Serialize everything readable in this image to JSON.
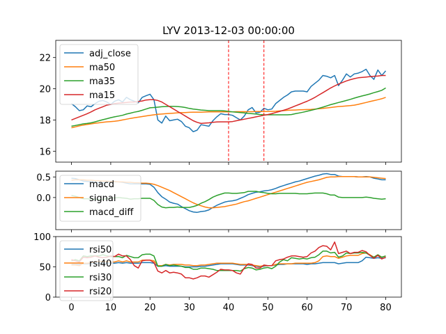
{
  "chart_data": [
    {
      "type": "line",
      "panel": "price",
      "title": "LYV 2013-12-03 00:00:00",
      "xlim": [
        -4,
        84
      ],
      "ylim": [
        15.3,
        23.1
      ],
      "yticks": [
        16,
        18,
        20,
        22
      ],
      "legend": "upper left",
      "vlines": [
        40,
        49
      ],
      "vline_color": "#ff0000",
      "series": [
        {
          "name": "adj_close",
          "color": "#1f77b4",
          "values": [
            19.05,
            18.85,
            18.6,
            18.65,
            18.9,
            18.85,
            19.05,
            19.2,
            19.25,
            19.15,
            19.0,
            19.2,
            19.3,
            19.15,
            19.45,
            19.3,
            19.2,
            19.1,
            19.45,
            19.55,
            19.65,
            19.3,
            18.0,
            17.8,
            18.25,
            17.95,
            18.0,
            18.05,
            17.9,
            17.6,
            17.5,
            17.25,
            17.35,
            17.7,
            17.65,
            17.6,
            17.95,
            18.2,
            18.4,
            18.35,
            18.35,
            18.3,
            18.15,
            18.0,
            18.25,
            18.65,
            18.8,
            18.45,
            18.5,
            18.75,
            18.65,
            18.7,
            19.05,
            19.25,
            19.45,
            19.6,
            19.8,
            19.85,
            19.85,
            19.85,
            19.8,
            20.15,
            20.35,
            20.55,
            20.85,
            20.8,
            20.7,
            20.85,
            20.2,
            20.55,
            20.95,
            20.75,
            20.95,
            21.0,
            21.1,
            21.25,
            20.85,
            20.6,
            21.2,
            20.85,
            21.15
          ]
        },
        {
          "name": "ma50",
          "color": "#ff7f0e",
          "values": [
            17.5,
            17.56,
            17.62,
            17.67,
            17.71,
            17.75,
            17.79,
            17.82,
            17.85,
            17.88,
            17.9,
            17.92,
            17.95,
            18.0,
            18.05,
            18.1,
            18.14,
            18.18,
            18.22,
            18.26,
            18.3,
            18.33,
            18.36,
            18.38,
            18.4,
            18.42,
            18.44,
            18.46,
            18.47,
            18.48,
            18.49,
            18.5,
            18.5,
            18.5,
            18.51,
            18.52,
            18.52,
            18.52,
            18.52,
            18.52,
            18.52,
            18.52,
            18.53,
            18.53,
            18.53,
            18.53,
            18.53,
            18.54,
            18.54,
            18.54,
            18.55,
            18.55,
            18.56,
            18.58,
            18.6,
            18.62,
            18.63,
            18.64,
            18.65,
            18.66,
            18.67,
            18.68,
            18.7,
            18.72,
            18.74,
            18.77,
            18.8,
            18.83,
            18.86,
            18.88,
            18.9,
            18.92,
            18.95,
            19.0,
            19.06,
            19.12,
            19.18,
            19.24,
            19.3,
            19.36,
            19.45
          ]
        },
        {
          "name": "ma35",
          "color": "#2ca02c",
          "values": [
            17.6,
            17.65,
            17.7,
            17.75,
            17.78,
            17.82,
            17.88,
            17.95,
            18.02,
            18.08,
            18.15,
            18.2,
            18.25,
            18.3,
            18.38,
            18.44,
            18.5,
            18.55,
            18.62,
            18.7,
            18.78,
            18.8,
            18.82,
            18.85,
            18.86,
            18.87,
            18.87,
            18.86,
            18.84,
            18.8,
            18.74,
            18.7,
            18.67,
            18.64,
            18.62,
            18.6,
            18.6,
            18.6,
            18.6,
            18.58,
            18.55,
            18.52,
            18.5,
            18.48,
            18.45,
            18.42,
            18.4,
            18.38,
            18.35,
            18.33,
            18.33,
            18.33,
            18.33,
            18.33,
            18.33,
            18.33,
            18.35,
            18.4,
            18.45,
            18.5,
            18.56,
            18.62,
            18.68,
            18.75,
            18.82,
            18.9,
            18.98,
            19.05,
            19.12,
            19.18,
            19.25,
            19.32,
            19.4,
            19.47,
            19.54,
            19.6,
            19.67,
            19.75,
            19.82,
            19.9,
            20.05
          ]
        },
        {
          "name": "ma15",
          "color": "#d62728",
          "values": [
            18.0,
            18.1,
            18.2,
            18.3,
            18.4,
            18.52,
            18.65,
            18.75,
            18.85,
            18.95,
            19.0,
            19.05,
            19.08,
            19.1,
            19.12,
            19.15,
            19.15,
            19.18,
            19.22,
            19.28,
            19.3,
            19.3,
            19.25,
            19.15,
            19.0,
            18.85,
            18.7,
            18.55,
            18.4,
            18.25,
            18.1,
            17.95,
            17.85,
            17.78,
            17.8,
            17.82,
            17.85,
            17.87,
            17.88,
            17.88,
            17.88,
            17.9,
            17.95,
            18.0,
            18.05,
            18.1,
            18.15,
            18.2,
            18.25,
            18.3,
            18.35,
            18.4,
            18.48,
            18.55,
            18.62,
            18.7,
            18.8,
            18.9,
            19.0,
            19.1,
            19.2,
            19.32,
            19.45,
            19.6,
            19.75,
            19.9,
            20.05,
            20.18,
            20.3,
            20.4,
            20.5,
            20.58,
            20.65,
            20.7,
            20.73,
            20.75,
            20.78,
            20.8,
            20.82,
            20.85,
            20.85
          ]
        }
      ]
    },
    {
      "type": "line",
      "panel": "macd",
      "xlim": [
        -4,
        84
      ],
      "ylim": [
        -0.78,
        0.64
      ],
      "yticks": [
        0.0,
        0.5
      ],
      "ytick_labels": [
        "0.0",
        "0.5"
      ],
      "legend": "lower left",
      "series": [
        {
          "name": "macd",
          "color": "#1f77b4",
          "values": [
            0.47,
            0.46,
            0.43,
            0.4,
            0.39,
            0.38,
            0.37,
            0.36,
            0.36,
            0.37,
            0.38,
            0.38,
            0.38,
            0.37,
            0.35,
            0.33,
            0.33,
            0.33,
            0.33,
            0.33,
            0.32,
            0.25,
            0.12,
            0.02,
            -0.04,
            -0.11,
            -0.14,
            -0.16,
            -0.22,
            -0.27,
            -0.32,
            -0.35,
            -0.36,
            -0.34,
            -0.33,
            -0.3,
            -0.24,
            -0.19,
            -0.15,
            -0.11,
            -0.09,
            -0.08,
            -0.06,
            -0.02,
            0.02,
            0.07,
            0.1,
            0.13,
            0.14,
            0.16,
            0.17,
            0.19,
            0.22,
            0.26,
            0.29,
            0.32,
            0.35,
            0.38,
            0.4,
            0.43,
            0.46,
            0.49,
            0.52,
            0.54,
            0.57,
            0.58,
            0.56,
            0.56,
            0.52,
            0.51,
            0.51,
            0.51,
            0.51,
            0.5,
            0.5,
            0.51,
            0.5,
            0.47,
            0.45,
            0.43,
            0.43
          ]
        },
        {
          "name": "signal",
          "color": "#ff7f0e",
          "values": [
            0.42,
            0.43,
            0.43,
            0.43,
            0.42,
            0.42,
            0.41,
            0.41,
            0.4,
            0.4,
            0.39,
            0.39,
            0.38,
            0.38,
            0.37,
            0.37,
            0.36,
            0.36,
            0.35,
            0.35,
            0.34,
            0.32,
            0.29,
            0.25,
            0.21,
            0.17,
            0.12,
            0.07,
            0.02,
            -0.03,
            -0.08,
            -0.13,
            -0.17,
            -0.2,
            -0.23,
            -0.25,
            -0.25,
            -0.24,
            -0.23,
            -0.22,
            -0.2,
            -0.18,
            -0.16,
            -0.13,
            -0.1,
            -0.08,
            -0.05,
            -0.02,
            0.01,
            0.04,
            0.07,
            0.1,
            0.13,
            0.16,
            0.19,
            0.22,
            0.25,
            0.28,
            0.31,
            0.34,
            0.37,
            0.39,
            0.41,
            0.43,
            0.46,
            0.49,
            0.5,
            0.5,
            0.51,
            0.51,
            0.51,
            0.51,
            0.51,
            0.5,
            0.5,
            0.5,
            0.5,
            0.49,
            0.48,
            0.47,
            0.46
          ]
        },
        {
          "name": "macd_diff",
          "color": "#2ca02c",
          "values": [
            0.05,
            0.03,
            0.0,
            -0.03,
            -0.03,
            -0.04,
            -0.04,
            -0.05,
            -0.04,
            -0.03,
            -0.01,
            -0.01,
            0.0,
            -0.01,
            -0.02,
            -0.04,
            -0.03,
            -0.03,
            -0.02,
            -0.02,
            -0.02,
            -0.07,
            -0.17,
            -0.23,
            -0.25,
            -0.24,
            -0.24,
            -0.23,
            -0.24,
            -0.24,
            -0.24,
            -0.22,
            -0.19,
            -0.14,
            -0.1,
            -0.05,
            0.01,
            0.05,
            0.08,
            0.11,
            0.11,
            0.1,
            0.1,
            0.11,
            0.12,
            0.15,
            0.15,
            0.15,
            0.13,
            0.12,
            0.1,
            0.09,
            0.09,
            0.1,
            0.1,
            0.1,
            0.1,
            0.1,
            0.09,
            0.09,
            0.09,
            0.1,
            0.11,
            0.11,
            0.11,
            0.09,
            0.06,
            0.06,
            0.01,
            0.0,
            0.0,
            0.0,
            0.0,
            0.0,
            0.0,
            0.01,
            0.0,
            -0.02,
            -0.03,
            -0.04,
            -0.03
          ]
        }
      ]
    },
    {
      "type": "line",
      "panel": "rsi",
      "xlim": [
        -4,
        84
      ],
      "ylim": [
        0,
        100
      ],
      "yticks": [
        0,
        50,
        100
      ],
      "xticks": [
        0,
        10,
        20,
        30,
        40,
        50,
        60,
        70,
        80
      ],
      "legend": "upper left",
      "series": [
        {
          "name": "rsi50",
          "color": "#1f77b4",
          "values": [
            54,
            54,
            54,
            55,
            55,
            55,
            56,
            56,
            56,
            56,
            56,
            56,
            57,
            56,
            57,
            56,
            56,
            56,
            57,
            57,
            57,
            56,
            51,
            51,
            52,
            51,
            51,
            51,
            51,
            50,
            50,
            50,
            50,
            51,
            51,
            52,
            53,
            54,
            55,
            55,
            55,
            55,
            54,
            53,
            53,
            53,
            52,
            51,
            50,
            51,
            52,
            52,
            53,
            54,
            54,
            55,
            55,
            55,
            55,
            55,
            54,
            55,
            55,
            56,
            57,
            57,
            57,
            57,
            55,
            56,
            57,
            57,
            57,
            57,
            60,
            66,
            65,
            64,
            65,
            64,
            65
          ]
        },
        {
          "name": "rsi40",
          "color": "#ff7f0e",
          "values": [
            53,
            53,
            52,
            56,
            56,
            57,
            58,
            59,
            59,
            59,
            58,
            58,
            60,
            58,
            60,
            58,
            58,
            58,
            61,
            61,
            61,
            60,
            52,
            52,
            54,
            53,
            54,
            54,
            54,
            53,
            53,
            52,
            52,
            53,
            53,
            54,
            55,
            56,
            56,
            56,
            56,
            56,
            55,
            54,
            54,
            54,
            53,
            52,
            51,
            52,
            52,
            52,
            54,
            55,
            55,
            55,
            55,
            56,
            56,
            56,
            56,
            56,
            57,
            60,
            67,
            68,
            67,
            67,
            64,
            66,
            68,
            69,
            69,
            69,
            72,
            73,
            70,
            66,
            70,
            66,
            68
          ]
        },
        {
          "name": "rsi30",
          "color": "#2ca02c",
          "values": [
            60,
            62,
            60,
            68,
            67,
            68,
            68,
            68,
            70,
            68,
            67,
            67,
            67,
            65,
            69,
            67,
            65,
            65,
            70,
            71,
            71,
            68,
            51,
            51,
            54,
            52,
            53,
            52,
            51,
            49,
            49,
            46,
            46,
            48,
            48,
            47,
            46,
            44,
            44,
            44,
            44,
            44,
            44,
            43,
            47,
            49,
            48,
            45,
            46,
            48,
            49,
            47,
            51,
            58,
            62,
            60,
            65,
            64,
            63,
            64,
            63,
            65,
            66,
            70,
            76,
            76,
            73,
            74,
            66,
            68,
            73,
            72,
            73,
            73,
            74,
            73,
            69,
            66,
            70,
            66,
            68
          ]
        },
        {
          "name": "rsi20",
          "color": "#d62728",
          "values": [
            62,
            60,
            58,
            66,
            65,
            66,
            68,
            66,
            65,
            66,
            68,
            67,
            71,
            68,
            68,
            62,
            52,
            48,
            60,
            61,
            61,
            57,
            43,
            40,
            44,
            40,
            41,
            40,
            38,
            32,
            32,
            30,
            32,
            35,
            35,
            33,
            37,
            41,
            46,
            45,
            45,
            44,
            40,
            38,
            48,
            55,
            54,
            48,
            48,
            53,
            52,
            52,
            60,
            62,
            63,
            66,
            68,
            68,
            67,
            66,
            67,
            73,
            76,
            82,
            85,
            84,
            78,
            91,
            72,
            74,
            76,
            72,
            74,
            74,
            77,
            75,
            69,
            64,
            69,
            63,
            66
          ]
        }
      ]
    }
  ]
}
